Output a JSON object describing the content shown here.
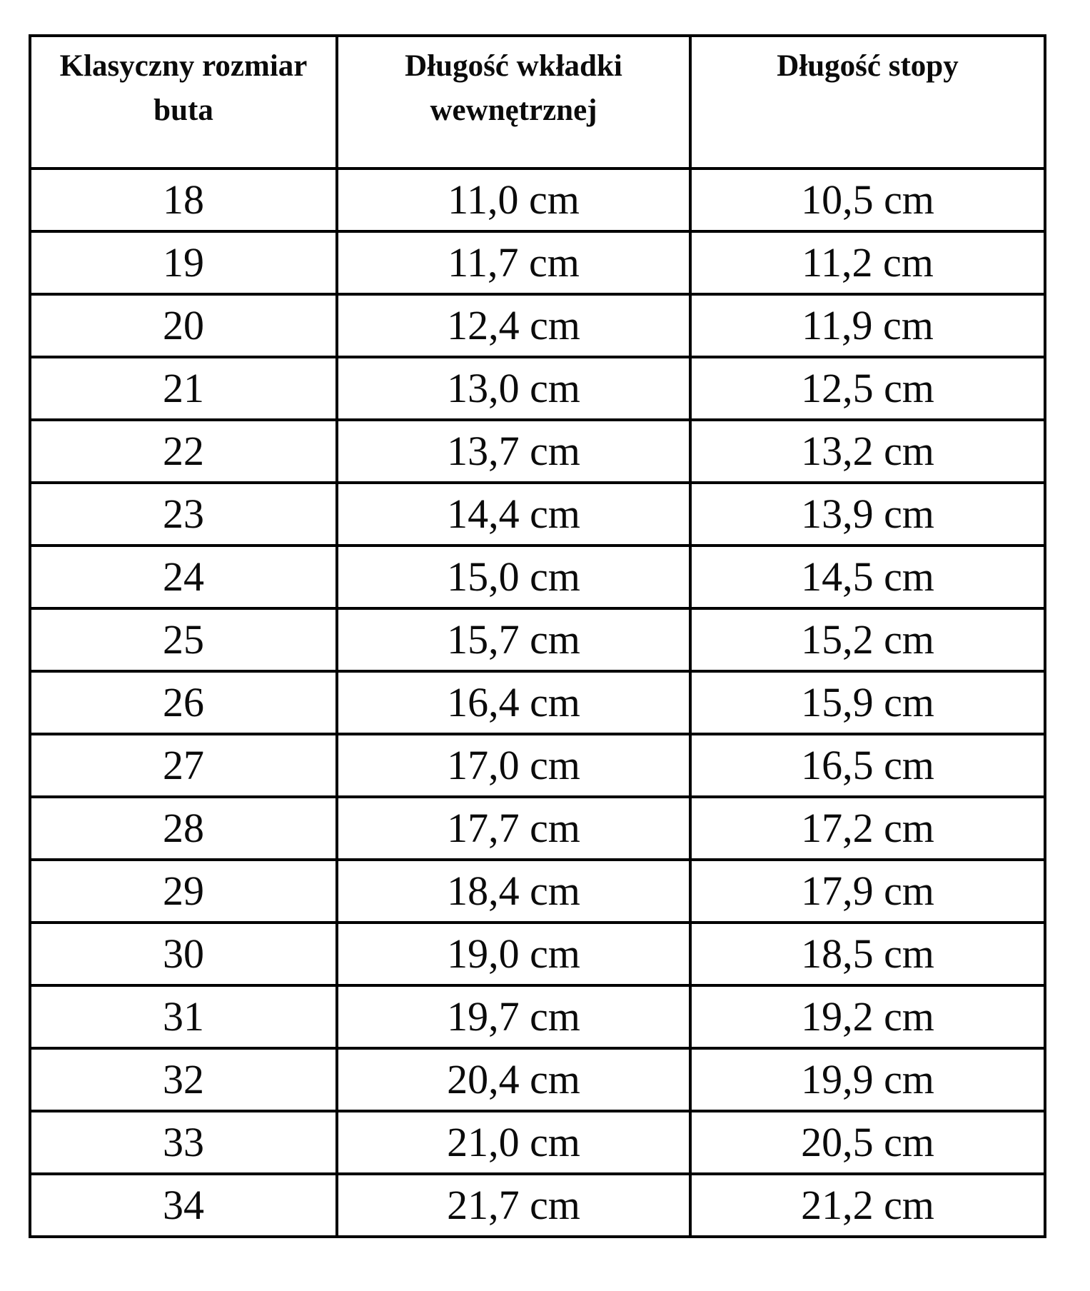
{
  "table": {
    "headers": [
      "Klasyczny rozmiar buta",
      "Długość wkładki wewnętrznej",
      "Długość stopy"
    ],
    "rows": [
      [
        "18",
        "11,0 cm",
        "10,5 cm"
      ],
      [
        "19",
        "11,7 cm",
        "11,2 cm"
      ],
      [
        "20",
        "12,4 cm",
        "11,9 cm"
      ],
      [
        "21",
        "13,0 cm",
        "12,5 cm"
      ],
      [
        "22",
        "13,7 cm",
        "13,2 cm"
      ],
      [
        "23",
        "14,4 cm",
        "13,9 cm"
      ],
      [
        "24",
        "15,0 cm",
        "14,5 cm"
      ],
      [
        "25",
        "15,7 cm",
        "15,2 cm"
      ],
      [
        "26",
        "16,4 cm",
        "15,9 cm"
      ],
      [
        "27",
        "17,0 cm",
        "16,5 cm"
      ],
      [
        "28",
        "17,7 cm",
        "17,2 cm"
      ],
      [
        "29",
        "18,4 cm",
        "17,9 cm"
      ],
      [
        "30",
        "19,0 cm",
        "18,5 cm"
      ],
      [
        "31",
        "19,7 cm",
        "19,2 cm"
      ],
      [
        "32",
        "20,4 cm",
        "19,9 cm"
      ],
      [
        "33",
        "21,0 cm",
        "20,5 cm"
      ],
      [
        "34",
        "21,7 cm",
        "21,2 cm"
      ]
    ]
  }
}
